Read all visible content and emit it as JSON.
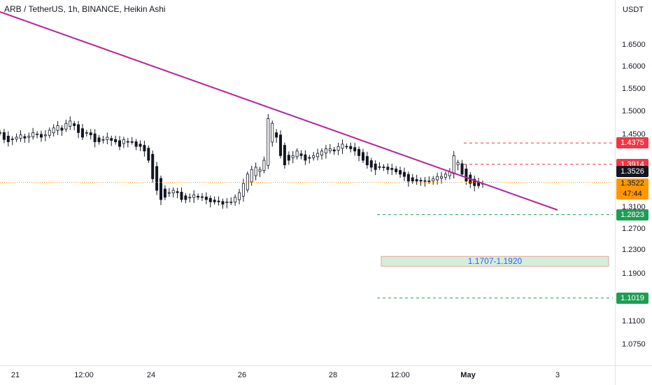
{
  "header": {
    "title": "ARB / TetherUS, 1h, BINANCE, Heikin Ashi",
    "currency": "USDT"
  },
  "chart_data": {
    "type": "candlestick",
    "title": "ARB / TetherUS, 1h, BINANCE, Heikin Ashi",
    "ylabel": "USDT",
    "ylim": [
      1.0519,
      1.6952
    ],
    "y_ticks": [
      "1.6500",
      "1.6000",
      "1.5500",
      "1.5000",
      "1.4500",
      "1.3100",
      "1.2700",
      "1.2300",
      "1.1900",
      "1.1500",
      "1.1100",
      "1.0750"
    ],
    "x_ticks": [
      "21",
      "12:00",
      "24",
      "26",
      "28",
      "12:00",
      "May",
      "3"
    ],
    "series": [
      {
        "name": "",
        "color": "#131722",
        "values": [
          1.46,
          1.445,
          1.44,
          1.445,
          1.45,
          1.455,
          1.448,
          1.452,
          1.46,
          1.457,
          1.45,
          1.455,
          1.465,
          1.47,
          1.475,
          1.465,
          1.48,
          1.485,
          1.475,
          1.46,
          1.45,
          1.46,
          1.455,
          1.44,
          1.44,
          1.445,
          1.45,
          1.443,
          1.44,
          1.43,
          1.445,
          1.44,
          1.44,
          1.43,
          1.43,
          1.42,
          1.4,
          1.36,
          1.335,
          1.315,
          1.32,
          1.33,
          1.335,
          1.33,
          1.315,
          1.315,
          1.32,
          1.325,
          1.32,
          1.32,
          1.315,
          1.31,
          1.31,
          1.31,
          1.305,
          1.31,
          1.31,
          1.32,
          1.33,
          1.35,
          1.37,
          1.38,
          1.385,
          1.38,
          1.4,
          1.49,
          1.48,
          1.45,
          1.41,
          1.39,
          1.4,
          1.41,
          1.42,
          1.41,
          1.4,
          1.405,
          1.41,
          1.415,
          1.42,
          1.425,
          1.425,
          1.42,
          1.43,
          1.435,
          1.43,
          1.425,
          1.42,
          1.41,
          1.4,
          1.39,
          1.385,
          1.38,
          1.385,
          1.385,
          1.38,
          1.38,
          1.375,
          1.37,
          1.365,
          1.355,
          1.355,
          1.355,
          1.355,
          1.355,
          1.355,
          1.36,
          1.365,
          1.365,
          1.37,
          1.375,
          1.41,
          1.395,
          1.37,
          1.355,
          1.35,
          1.345,
          1.345,
          1.35
        ]
      }
    ],
    "trendline": {
      "color": "#9c27b0",
      "dash_color": "#e91e63",
      "from": {
        "x": "20 00:00",
        "y": 1.688
      },
      "to": {
        "x": "2 04:00",
        "y": 1.3
      }
    },
    "current_price_line": {
      "y": 1.3522,
      "color": "#ff9800"
    },
    "levels": [
      {
        "value": 1.4375,
        "label": "1.4375",
        "style": "resistance",
        "color": "#f23645"
      },
      {
        "value": 1.3914,
        "label": "1.3914",
        "style": "resistance",
        "color": "#f23645"
      },
      {
        "value": 1.2823,
        "label": "1.2823",
        "style": "support",
        "color": "#1e9e55"
      },
      {
        "value": 1.1019,
        "label": "1.1019",
        "style": "support",
        "color": "#1e9e55"
      }
    ],
    "zone": {
      "low": 1.1707,
      "high": 1.192,
      "label": "1.1707-1.1920",
      "fill": "#d4eed9",
      "border": "#e8a1a1"
    },
    "price_tags": {
      "last": {
        "label": "1.3526",
        "color": "#131722"
      },
      "current": {
        "label": "1.3522",
        "countdown": "47:44",
        "color": "#ff9800"
      }
    },
    "grid": false,
    "legend": "none"
  }
}
